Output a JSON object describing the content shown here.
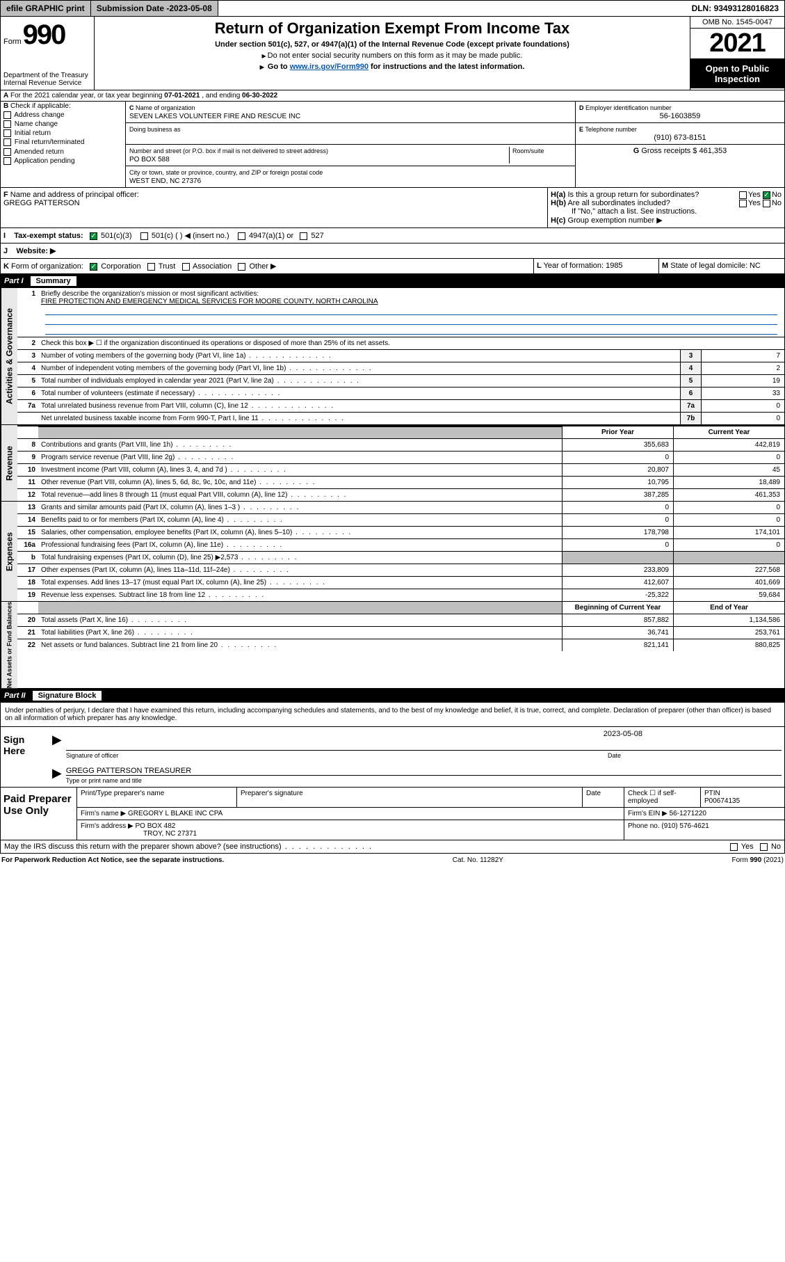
{
  "topbar": {
    "efile": "efile GRAPHIC print",
    "submission_label": "Submission Date - ",
    "submission_date": "2023-05-08",
    "dln_label": "DLN: ",
    "dln": "93493128016823"
  },
  "header": {
    "form_word": "Form",
    "form_number": "990",
    "dept": "Department of the Treasury\nInternal Revenue Service",
    "title": "Return of Organization Exempt From Income Tax",
    "sub": "Under section 501(c), 527, or 4947(a)(1) of the Internal Revenue Code (except private foundations)",
    "note1": "Do not enter social security numbers on this form as it may be made public.",
    "note2_pre": "Go to ",
    "note2_link": "www.irs.gov/Form990",
    "note2_post": " for instructions and the latest information.",
    "omb": "OMB No. 1545-0047",
    "year": "2021",
    "open": "Open to Public Inspection"
  },
  "A": {
    "label": "For the 2021 calendar year, or tax year beginning ",
    "begin": "07-01-2021",
    "mid": " , and ending ",
    "end": "06-30-2022"
  },
  "B": {
    "label": "Check if applicable:",
    "items": [
      "Address change",
      "Name change",
      "Initial return",
      "Final return/terminated",
      "Amended return",
      "Application pending"
    ]
  },
  "C": {
    "name_label": "Name of organization",
    "name": "SEVEN LAKES VOLUNTEER FIRE AND RESCUE INC",
    "dba_label": "Doing business as",
    "dba": "",
    "addr_label": "Number and street (or P.O. box if mail is not delivered to street address)",
    "room_label": "Room/suite",
    "addr": "PO BOX 588",
    "city_label": "City or town, state or province, country, and ZIP or foreign postal code",
    "city": "WEST END, NC  27376"
  },
  "D": {
    "label": "Employer identification number",
    "value": "56-1603859"
  },
  "E": {
    "label": "Telephone number",
    "value": "(910) 673-8151"
  },
  "G": {
    "label": "Gross receipts $",
    "value": "461,353"
  },
  "F": {
    "label": "Name and address of principal officer:",
    "value": "GREGG PATTERSON"
  },
  "H": {
    "a": "Is this a group return for subordinates?",
    "b": "Are all subordinates included?",
    "note": "If \"No,\" attach a list. See instructions.",
    "c": "Group exemption number ▶",
    "yes": "Yes",
    "no": "No"
  },
  "I": {
    "label": "Tax-exempt status:",
    "opts": [
      "501(c)(3)",
      "501(c) (  ) ◀ (insert no.)",
      "4947(a)(1) or",
      "527"
    ]
  },
  "J": {
    "label": "Website: ▶",
    "value": ""
  },
  "K": {
    "label": "Form of organization:",
    "opts": [
      "Corporation",
      "Trust",
      "Association",
      "Other ▶"
    ]
  },
  "L": {
    "label": "Year of formation:",
    "value": "1985"
  },
  "M": {
    "label": "State of legal domicile:",
    "value": "NC"
  },
  "part1": {
    "header_num": "Part I",
    "header_title": "Summary",
    "q1": "Briefly describe the organization's mission or most significant activities:",
    "mission": "FIRE PROTECTION AND EMERGENCY MEDICAL SERVICES FOR MOORE COUNTY, NORTH CAROLINA",
    "q2": "Check this box ▶ ☐  if the organization discontinued its operations or disposed of more than 25% of its net assets.",
    "rows_gov": [
      {
        "n": "3",
        "t": "Number of voting members of the governing body (Part VI, line 1a)",
        "box": "3",
        "val": "7"
      },
      {
        "n": "4",
        "t": "Number of independent voting members of the governing body (Part VI, line 1b)",
        "box": "4",
        "val": "2"
      },
      {
        "n": "5",
        "t": "Total number of individuals employed in calendar year 2021 (Part V, line 2a)",
        "box": "5",
        "val": "19"
      },
      {
        "n": "6",
        "t": "Total number of volunteers (estimate if necessary)",
        "box": "6",
        "val": "33"
      },
      {
        "n": "7a",
        "t": "Total unrelated business revenue from Part VIII, column (C), line 12",
        "box": "7a",
        "val": "0"
      },
      {
        "n": "",
        "t": "Net unrelated business taxable income from Form 990-T, Part I, line 11",
        "box": "7b",
        "val": "0"
      }
    ],
    "col_prior": "Prior Year",
    "col_current": "Current Year",
    "rows_rev": [
      {
        "n": "8",
        "t": "Contributions and grants (Part VIII, line 1h)",
        "p": "355,683",
        "c": "442,819"
      },
      {
        "n": "9",
        "t": "Program service revenue (Part VIII, line 2g)",
        "p": "0",
        "c": "0"
      },
      {
        "n": "10",
        "t": "Investment income (Part VIII, column (A), lines 3, 4, and 7d )",
        "p": "20,807",
        "c": "45"
      },
      {
        "n": "11",
        "t": "Other revenue (Part VIII, column (A), lines 5, 6d, 8c, 9c, 10c, and 11e)",
        "p": "10,795",
        "c": "18,489"
      },
      {
        "n": "12",
        "t": "Total revenue—add lines 8 through 11 (must equal Part VIII, column (A), line 12)",
        "p": "387,285",
        "c": "461,353"
      }
    ],
    "rows_exp": [
      {
        "n": "13",
        "t": "Grants and similar amounts paid (Part IX, column (A), lines 1–3 )",
        "p": "0",
        "c": "0"
      },
      {
        "n": "14",
        "t": "Benefits paid to or for members (Part IX, column (A), line 4)",
        "p": "0",
        "c": "0"
      },
      {
        "n": "15",
        "t": "Salaries, other compensation, employee benefits (Part IX, column (A), lines 5–10)",
        "p": "178,798",
        "c": "174,101"
      },
      {
        "n": "16a",
        "t": "Professional fundraising fees (Part IX, column (A), line 11e)",
        "p": "0",
        "c": "0"
      },
      {
        "n": "b",
        "t": "Total fundraising expenses (Part IX, column (D), line 25) ▶2,573",
        "p": "",
        "c": "",
        "shade": true
      },
      {
        "n": "17",
        "t": "Other expenses (Part IX, column (A), lines 11a–11d, 11f–24e)",
        "p": "233,809",
        "c": "227,568"
      },
      {
        "n": "18",
        "t": "Total expenses. Add lines 13–17 (must equal Part IX, column (A), line 25)",
        "p": "412,607",
        "c": "401,669"
      },
      {
        "n": "19",
        "t": "Revenue less expenses. Subtract line 18 from line 12",
        "p": "-25,322",
        "c": "59,684"
      }
    ],
    "col_begin": "Beginning of Current Year",
    "col_end": "End of Year",
    "rows_net": [
      {
        "n": "20",
        "t": "Total assets (Part X, line 16)",
        "p": "857,882",
        "c": "1,134,586"
      },
      {
        "n": "21",
        "t": "Total liabilities (Part X, line 26)",
        "p": "36,741",
        "c": "253,761"
      },
      {
        "n": "22",
        "t": "Net assets or fund balances. Subtract line 21 from line 20",
        "p": "821,141",
        "c": "880,825"
      }
    ]
  },
  "part2": {
    "header_num": "Part II",
    "header_title": "Signature Block",
    "perjury": "Under penalties of perjury, I declare that I have examined this return, including accompanying schedules and statements, and to the best of my knowledge and belief, it is true, correct, and complete. Declaration of preparer (other than officer) is based on all information of which preparer has any knowledge.",
    "sign_here": "Sign Here",
    "sig_officer": "Signature of officer",
    "sig_date_label": "Date",
    "sig_date": "2023-05-08",
    "sig_name": "GREGG PATTERSON TREASURER",
    "sig_name_label": "Type or print name and title"
  },
  "paid": {
    "label": "Paid Preparer Use Only",
    "h1": "Print/Type preparer's name",
    "h2": "Preparer's signature",
    "h3": "Date",
    "h4_pre": "Check ☐ if self-employed",
    "h5": "PTIN",
    "ptin": "P00674135",
    "firm_name_label": "Firm's name ▶",
    "firm_name": "GREGORY L BLAKE INC CPA",
    "firm_ein_label": "Firm's EIN ▶",
    "firm_ein": "56-1271220",
    "firm_addr_label": "Firm's address ▶",
    "firm_addr1": "PO BOX 482",
    "firm_addr2": "TROY, NC  27371",
    "phone_label": "Phone no.",
    "phone": "(910) 576-4621"
  },
  "footer": {
    "discuss": "May the IRS discuss this return with the preparer shown above? (see instructions)",
    "pra": "For Paperwork Reduction Act Notice, see the separate instructions.",
    "cat": "Cat. No. 11282Y",
    "form": "Form 990 (2021)"
  },
  "tabs": {
    "gov": "Activities & Governance",
    "rev": "Revenue",
    "exp": "Expenses",
    "net": "Net Assets or Fund Balances"
  }
}
